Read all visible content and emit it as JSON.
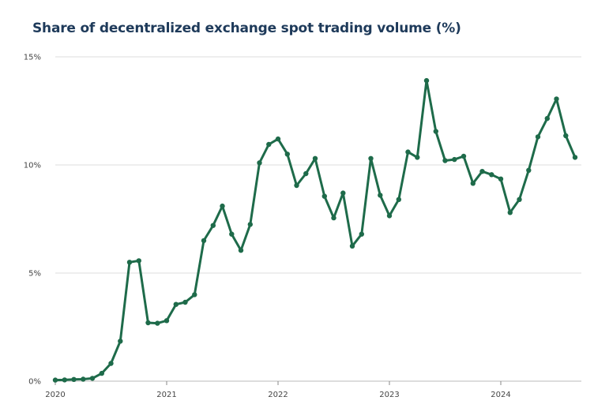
{
  "chart_data": {
    "type": "line",
    "title": "Share of decentralized exchange spot trading volume (%)",
    "xlabel": "",
    "ylabel": "",
    "ylim": [
      0,
      15
    ],
    "y_ticks": [
      {
        "value": 0,
        "label": "0%"
      },
      {
        "value": 5,
        "label": "5%"
      },
      {
        "value": 10,
        "label": "10%"
      },
      {
        "value": 15,
        "label": "15%"
      }
    ],
    "x_ticks": [
      {
        "value": "2020-01",
        "label": "2020"
      },
      {
        "value": "2021-01",
        "label": "2021"
      },
      {
        "value": "2022-01",
        "label": "2022"
      },
      {
        "value": "2023-01",
        "label": "2023"
      },
      {
        "value": "2024-01",
        "label": "2024"
      }
    ],
    "grid": "horizontal",
    "colors": {
      "line": "#1e6b4a",
      "grid": "#dddddd",
      "title": "#1e3a5a"
    },
    "series": [
      {
        "x": [
          "2020-01",
          "2020-02",
          "2020-03",
          "2020-04",
          "2020-05",
          "2020-06",
          "2020-07",
          "2020-08",
          "2020-09",
          "2020-10",
          "2020-11",
          "2020-12",
          "2021-01",
          "2021-02",
          "2021-03",
          "2021-04",
          "2021-05",
          "2021-06",
          "2021-07",
          "2021-08",
          "2021-09",
          "2021-10",
          "2021-11",
          "2021-12",
          "2022-01",
          "2022-02",
          "2022-03",
          "2022-04",
          "2022-05",
          "2022-06",
          "2022-07",
          "2022-08",
          "2022-09",
          "2022-10",
          "2022-11",
          "2022-12",
          "2023-01",
          "2023-02",
          "2023-03",
          "2023-04",
          "2023-05",
          "2023-06",
          "2023-07",
          "2023-08",
          "2023-09",
          "2023-10",
          "2023-11",
          "2023-12",
          "2024-01",
          "2024-02",
          "2024-03",
          "2024-04",
          "2024-05",
          "2024-06",
          "2024-07",
          "2024-08",
          "2024-09"
        ],
        "values": [
          0.05,
          0.06,
          0.08,
          0.09,
          0.13,
          0.36,
          0.82,
          1.85,
          5.5,
          5.57,
          2.7,
          2.68,
          2.8,
          3.55,
          3.65,
          4.0,
          6.5,
          7.2,
          8.1,
          6.8,
          6.05,
          7.25,
          10.1,
          10.95,
          11.2,
          10.5,
          9.05,
          9.6,
          10.3,
          8.55,
          7.55,
          8.7,
          6.25,
          6.8,
          10.3,
          8.6,
          7.65,
          8.4,
          10.6,
          10.35,
          13.9,
          11.55,
          10.2,
          10.25,
          10.4,
          9.15,
          9.7,
          9.55,
          9.35,
          7.8,
          8.4,
          9.75,
          11.3,
          12.15,
          13.05,
          11.35,
          10.35
        ]
      }
    ]
  }
}
